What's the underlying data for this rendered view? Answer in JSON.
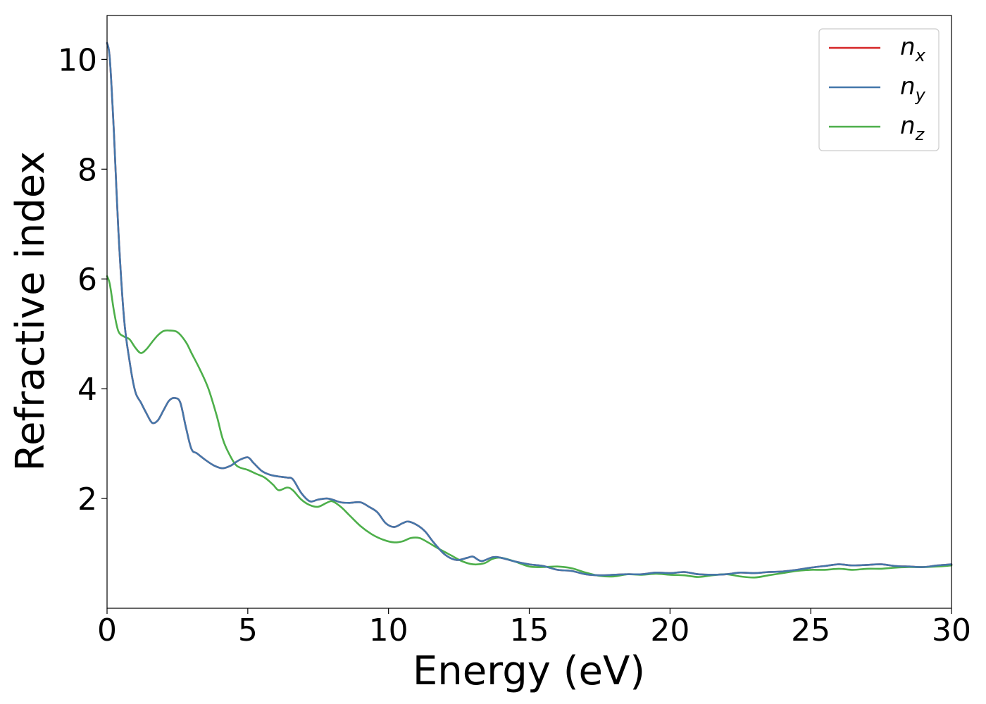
{
  "chart_data": {
    "type": "line",
    "title": "",
    "xlabel": "Energy (eV)",
    "ylabel": "Refractive index",
    "xlim": [
      0,
      30
    ],
    "ylim": [
      0,
      10.8
    ],
    "xticks": [
      0,
      5,
      10,
      15,
      20,
      25,
      30
    ],
    "yticks": [
      2,
      4,
      6,
      8,
      10
    ],
    "grid": false,
    "legend_position": "top-right",
    "series": [
      {
        "name": "n_x",
        "label_main": "n",
        "label_sub": "x",
        "color": "#d62728",
        "x": [
          0,
          0.1,
          0.25,
          0.4,
          0.6,
          0.8,
          1.0,
          1.2,
          1.4,
          1.6,
          1.8,
          2.0,
          2.2,
          2.4,
          2.6,
          2.8,
          3.0,
          3.2,
          3.5,
          3.8,
          4.1,
          4.4,
          4.7,
          5.0,
          5.2,
          5.5,
          5.8,
          6.1,
          6.4,
          6.6,
          6.9,
          7.2,
          7.5,
          7.8,
          8.0,
          8.3,
          8.6,
          9.0,
          9.3,
          9.6,
          9.9,
          10.2,
          10.5,
          10.7,
          11.0,
          11.3,
          11.6,
          12.0,
          12.4,
          12.8,
          13.0,
          13.3,
          13.7,
          14.0,
          14.5,
          15.0,
          15.5,
          16.0,
          16.5,
          17.0,
          17.5,
          18.0,
          18.5,
          19.0,
          19.5,
          20.0,
          20.5,
          21.0,
          21.5,
          22.0,
          22.5,
          23.0,
          23.5,
          24.0,
          24.5,
          25.0,
          25.5,
          26.0,
          26.5,
          27.0,
          27.5,
          28.0,
          28.5,
          29.0,
          29.5,
          30.0
        ],
        "values": [
          10.3,
          10.0,
          8.6,
          6.9,
          5.3,
          4.5,
          3.95,
          3.75,
          3.55,
          3.38,
          3.42,
          3.6,
          3.78,
          3.83,
          3.75,
          3.3,
          2.9,
          2.82,
          2.7,
          2.6,
          2.55,
          2.6,
          2.7,
          2.75,
          2.65,
          2.5,
          2.43,
          2.4,
          2.38,
          2.35,
          2.1,
          1.95,
          1.98,
          2.0,
          1.98,
          1.93,
          1.92,
          1.93,
          1.85,
          1.75,
          1.55,
          1.48,
          1.55,
          1.58,
          1.52,
          1.4,
          1.2,
          0.98,
          0.88,
          0.92,
          0.94,
          0.86,
          0.93,
          0.92,
          0.85,
          0.8,
          0.77,
          0.7,
          0.68,
          0.62,
          0.6,
          0.61,
          0.62,
          0.62,
          0.65,
          0.64,
          0.66,
          0.62,
          0.61,
          0.62,
          0.65,
          0.64,
          0.66,
          0.67,
          0.7,
          0.74,
          0.77,
          0.8,
          0.78,
          0.79,
          0.8,
          0.77,
          0.76,
          0.75,
          0.78,
          0.8
        ]
      },
      {
        "name": "n_y",
        "label_main": "n",
        "label_sub": "y",
        "color": "#4477aa",
        "x": [
          0,
          0.1,
          0.25,
          0.4,
          0.6,
          0.8,
          1.0,
          1.2,
          1.4,
          1.6,
          1.8,
          2.0,
          2.2,
          2.4,
          2.6,
          2.8,
          3.0,
          3.2,
          3.5,
          3.8,
          4.1,
          4.4,
          4.7,
          5.0,
          5.2,
          5.5,
          5.8,
          6.1,
          6.4,
          6.6,
          6.9,
          7.2,
          7.5,
          7.8,
          8.0,
          8.3,
          8.6,
          9.0,
          9.3,
          9.6,
          9.9,
          10.2,
          10.5,
          10.7,
          11.0,
          11.3,
          11.6,
          12.0,
          12.4,
          12.8,
          13.0,
          13.3,
          13.7,
          14.0,
          14.5,
          15.0,
          15.5,
          16.0,
          16.5,
          17.0,
          17.5,
          18.0,
          18.5,
          19.0,
          19.5,
          20.0,
          20.5,
          21.0,
          21.5,
          22.0,
          22.5,
          23.0,
          23.5,
          24.0,
          24.5,
          25.0,
          25.5,
          26.0,
          26.5,
          27.0,
          27.5,
          28.0,
          28.5,
          29.0,
          29.5,
          30.0
        ],
        "values": [
          10.3,
          10.0,
          8.6,
          6.9,
          5.3,
          4.5,
          3.95,
          3.75,
          3.55,
          3.38,
          3.42,
          3.6,
          3.78,
          3.83,
          3.75,
          3.3,
          2.9,
          2.82,
          2.7,
          2.6,
          2.55,
          2.6,
          2.7,
          2.75,
          2.65,
          2.5,
          2.43,
          2.4,
          2.38,
          2.35,
          2.1,
          1.95,
          1.98,
          2.0,
          1.98,
          1.93,
          1.92,
          1.93,
          1.85,
          1.75,
          1.55,
          1.48,
          1.55,
          1.58,
          1.52,
          1.4,
          1.2,
          0.98,
          0.88,
          0.92,
          0.94,
          0.86,
          0.93,
          0.92,
          0.85,
          0.8,
          0.77,
          0.7,
          0.68,
          0.62,
          0.6,
          0.61,
          0.62,
          0.62,
          0.65,
          0.64,
          0.66,
          0.62,
          0.61,
          0.62,
          0.65,
          0.64,
          0.66,
          0.67,
          0.7,
          0.74,
          0.77,
          0.8,
          0.78,
          0.79,
          0.8,
          0.77,
          0.76,
          0.75,
          0.78,
          0.8
        ]
      },
      {
        "name": "n_z",
        "label_main": "n",
        "label_sub": "z",
        "color": "#4daf4a",
        "x": [
          0,
          0.1,
          0.25,
          0.4,
          0.6,
          0.8,
          1.0,
          1.2,
          1.4,
          1.6,
          1.8,
          2.0,
          2.2,
          2.5,
          2.8,
          3.0,
          3.3,
          3.6,
          3.9,
          4.1,
          4.3,
          4.6,
          5.0,
          5.3,
          5.6,
          5.9,
          6.1,
          6.4,
          6.6,
          6.9,
          7.2,
          7.5,
          7.8,
          8.0,
          8.3,
          8.6,
          9.0,
          9.4,
          9.8,
          10.2,
          10.5,
          10.8,
          11.1,
          11.4,
          11.8,
          12.2,
          12.6,
          13.0,
          13.4,
          13.7,
          14.0,
          14.5,
          15.0,
          15.5,
          16.0,
          16.5,
          17.0,
          17.5,
          18.0,
          18.5,
          19.0,
          19.5,
          20.0,
          20.5,
          21.0,
          21.5,
          22.0,
          22.5,
          23.0,
          23.5,
          24.0,
          24.5,
          25.0,
          25.5,
          26.0,
          26.5,
          27.0,
          27.5,
          28.0,
          28.5,
          29.0,
          29.5,
          30.0
        ],
        "values": [
          6.05,
          5.9,
          5.4,
          5.05,
          4.95,
          4.9,
          4.75,
          4.65,
          4.72,
          4.85,
          4.97,
          5.05,
          5.06,
          5.03,
          4.85,
          4.65,
          4.35,
          4.0,
          3.5,
          3.1,
          2.85,
          2.6,
          2.52,
          2.45,
          2.38,
          2.25,
          2.15,
          2.2,
          2.15,
          1.98,
          1.88,
          1.85,
          1.92,
          1.95,
          1.85,
          1.7,
          1.5,
          1.35,
          1.25,
          1.2,
          1.22,
          1.28,
          1.28,
          1.2,
          1.08,
          0.97,
          0.86,
          0.8,
          0.82,
          0.9,
          0.92,
          0.85,
          0.76,
          0.75,
          0.76,
          0.73,
          0.65,
          0.59,
          0.58,
          0.62,
          0.61,
          0.63,
          0.61,
          0.6,
          0.57,
          0.6,
          0.62,
          0.58,
          0.56,
          0.6,
          0.64,
          0.68,
          0.7,
          0.7,
          0.72,
          0.7,
          0.72,
          0.72,
          0.74,
          0.75,
          0.75,
          0.76,
          0.78
        ]
      }
    ]
  }
}
